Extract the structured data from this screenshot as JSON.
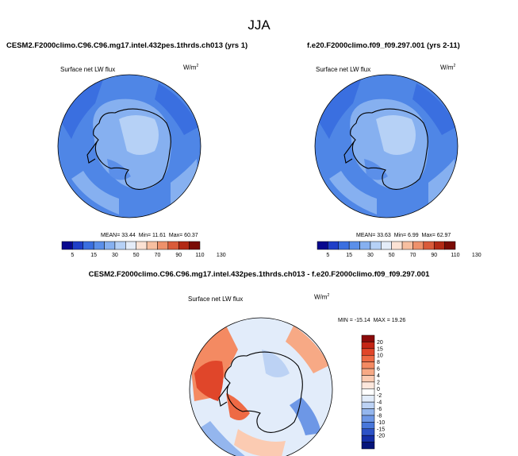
{
  "title": "JJA",
  "panels": [
    {
      "case": "CESM2.F2000climo.C96.C96.mg17.intel.432pes.1thrds.ch013 (yrs 1)",
      "variable": "Surface net LW flux",
      "units": "W/m",
      "units_sup": "2",
      "stats": {
        "mean_label": "MEAN=",
        "mean": "33.44",
        "min_label": "Min=",
        "min": "11.61",
        "max_label": "Max=",
        "max": "60.37"
      }
    },
    {
      "case": "f.e20.F2000climo.f09_f09.297.001 (yrs 2-11)",
      "variable": "Surface net LW flux",
      "units": "W/m",
      "units_sup": "2",
      "stats": {
        "mean_label": "MEAN=",
        "mean": "33.63",
        "min_label": "Min=",
        "min": "6.99",
        "max_label": "Max=",
        "max": "62.97"
      }
    },
    {
      "case": "CESM2.F2000climo.C96.C96.mg17.intel.432pes.1thrds.ch013 - f.e20.F2000climo.f09_f09.297.001",
      "variable": "Surface net LW flux",
      "units": "W/m",
      "units_sup": "2",
      "stats": {
        "min_label": "MIN =",
        "min": "-15.14",
        "max_label": "MAX =",
        "max": "19.26"
      }
    }
  ],
  "chart_data": [
    {
      "type": "heatmap",
      "projection": "south-polar-stereographic",
      "title": "CESM2.F2000climo.C96.C96.mg17.intel.432pes.1thrds.ch013 (yrs 1)",
      "variable": "Surface net LW flux",
      "units": "W/m2",
      "mean": 33.44,
      "min": 11.61,
      "max": 60.37,
      "colorbar": {
        "levels": [
          5,
          15,
          30,
          50,
          70,
          90,
          110,
          130
        ],
        "colors": [
          "#08088e",
          "#1f3fc8",
          "#3a6fe0",
          "#5b8fe9",
          "#86b0f0",
          "#b6d1f6",
          "#e4ecf8",
          "#fbe2d4",
          "#f7bfa0",
          "#ee916b",
          "#d95b3a",
          "#b22a15",
          "#7a0c05"
        ]
      }
    },
    {
      "type": "heatmap",
      "projection": "south-polar-stereographic",
      "title": "f.e20.F2000climo.f09_f09.297.001 (yrs 2-11)",
      "variable": "Surface net LW flux",
      "units": "W/m2",
      "mean": 33.63,
      "min": 6.99,
      "max": 62.97,
      "colorbar": {
        "levels": [
          5,
          15,
          30,
          50,
          70,
          90,
          110,
          130
        ],
        "colors": [
          "#08088e",
          "#1f3fc8",
          "#3a6fe0",
          "#5b8fe9",
          "#86b0f0",
          "#b6d1f6",
          "#e4ecf8",
          "#fbe2d4",
          "#f7bfa0",
          "#ee916b",
          "#d95b3a",
          "#b22a15",
          "#7a0c05"
        ]
      }
    },
    {
      "type": "heatmap",
      "projection": "south-polar-stereographic",
      "title": "CESM2.F2000climo.C96.C96.mg17.intel.432pes.1thrds.ch013 - f.e20.F2000climo.f09_f09.297.001",
      "variable": "Surface net LW flux",
      "units": "W/m2",
      "min": -15.14,
      "max": 19.26,
      "colorbar": {
        "levels": [
          20,
          15,
          10,
          8,
          6,
          4,
          2,
          0,
          -2,
          -4,
          -6,
          -8,
          -10,
          -15,
          -20
        ],
        "colors": [
          "#8b0a0a",
          "#c42515",
          "#e0462a",
          "#ee6a45",
          "#f48a62",
          "#f7a985",
          "#fbcbb2",
          "#fde7dc",
          "#ffffff",
          "#e2ecfa",
          "#bcd2f4",
          "#94b6ee",
          "#6d97e6",
          "#4877db",
          "#2c52c6",
          "#142fa8",
          "#05147a"
        ]
      }
    }
  ]
}
